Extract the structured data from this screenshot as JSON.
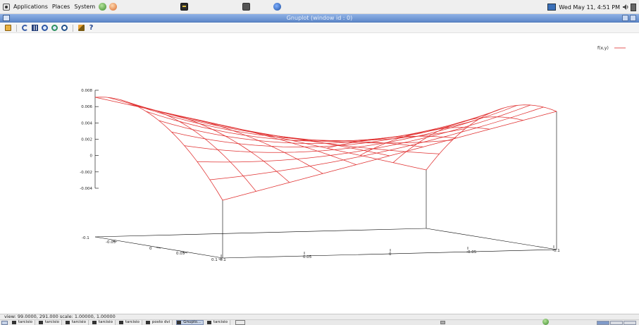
{
  "top_panel": {
    "menus": [
      "Applications",
      "Places",
      "System"
    ],
    "clock": "Wed May 11,  4:51 PM"
  },
  "window": {
    "title": "Gnuplot (window id : 0)"
  },
  "toolbar": {
    "buttons": [
      {
        "name": "copy-to-clipboard",
        "icon": "clipboard-icon"
      },
      {
        "name": "replot",
        "icon": "replot-icon"
      },
      {
        "name": "show-grid",
        "icon": "grid-icon"
      },
      {
        "name": "previous-zoom",
        "icon": "zoom-previous-icon"
      },
      {
        "name": "next-zoom",
        "icon": "zoom-next-icon"
      },
      {
        "name": "autoscale",
        "icon": "autoscale-icon"
      },
      {
        "name": "configure",
        "icon": "wrench-icon"
      },
      {
        "name": "help",
        "icon": "help-icon",
        "glyph": "?"
      }
    ]
  },
  "plot": {
    "legend": "f(x,y)",
    "line_color": "#e03030",
    "z_ticks": [
      "0.008",
      "0.006",
      "0.004",
      "0.002",
      "0",
      "-0.002",
      "-0.004"
    ],
    "z_base_label": "-0.1",
    "y_ticks": [
      "-0.05",
      "0",
      "0.05",
      "0.1"
    ],
    "x_ticks": [
      "0.1",
      "0.05",
      "0",
      "-0.05",
      "-0.1"
    ]
  },
  "chart_data": {
    "type": "surface",
    "series": [
      {
        "name": "f(x,y)"
      }
    ],
    "x_range": [
      -0.1,
      0.1
    ],
    "y_range": [
      -0.1,
      0.1
    ],
    "z_range": [
      -0.005,
      0.008
    ],
    "z_ticks": [
      0.008,
      0.006,
      0.004,
      0.002,
      0,
      -0.002,
      -0.004
    ],
    "grid_lines": 10,
    "legend_position": "top-right",
    "view": "99.0000, 291.000",
    "scale": "1.00000, 1.00000"
  },
  "status_bar": {
    "text": "view: 99.0000, 291.000  scale: 1.00000, 1.00000"
  },
  "taskbar": {
    "tasks": [
      {
        "label": "tarcisio",
        "active": false
      },
      {
        "label": "tarcisio",
        "active": false
      },
      {
        "label": "tarcisio",
        "active": false
      },
      {
        "label": "tarcisio",
        "active": false
      },
      {
        "label": "tarcisio",
        "active": false
      },
      {
        "label": "posto dvi",
        "active": false
      },
      {
        "label": "Gnuplo...",
        "active": true
      },
      {
        "label": "tarcisio",
        "active": false
      }
    ]
  }
}
